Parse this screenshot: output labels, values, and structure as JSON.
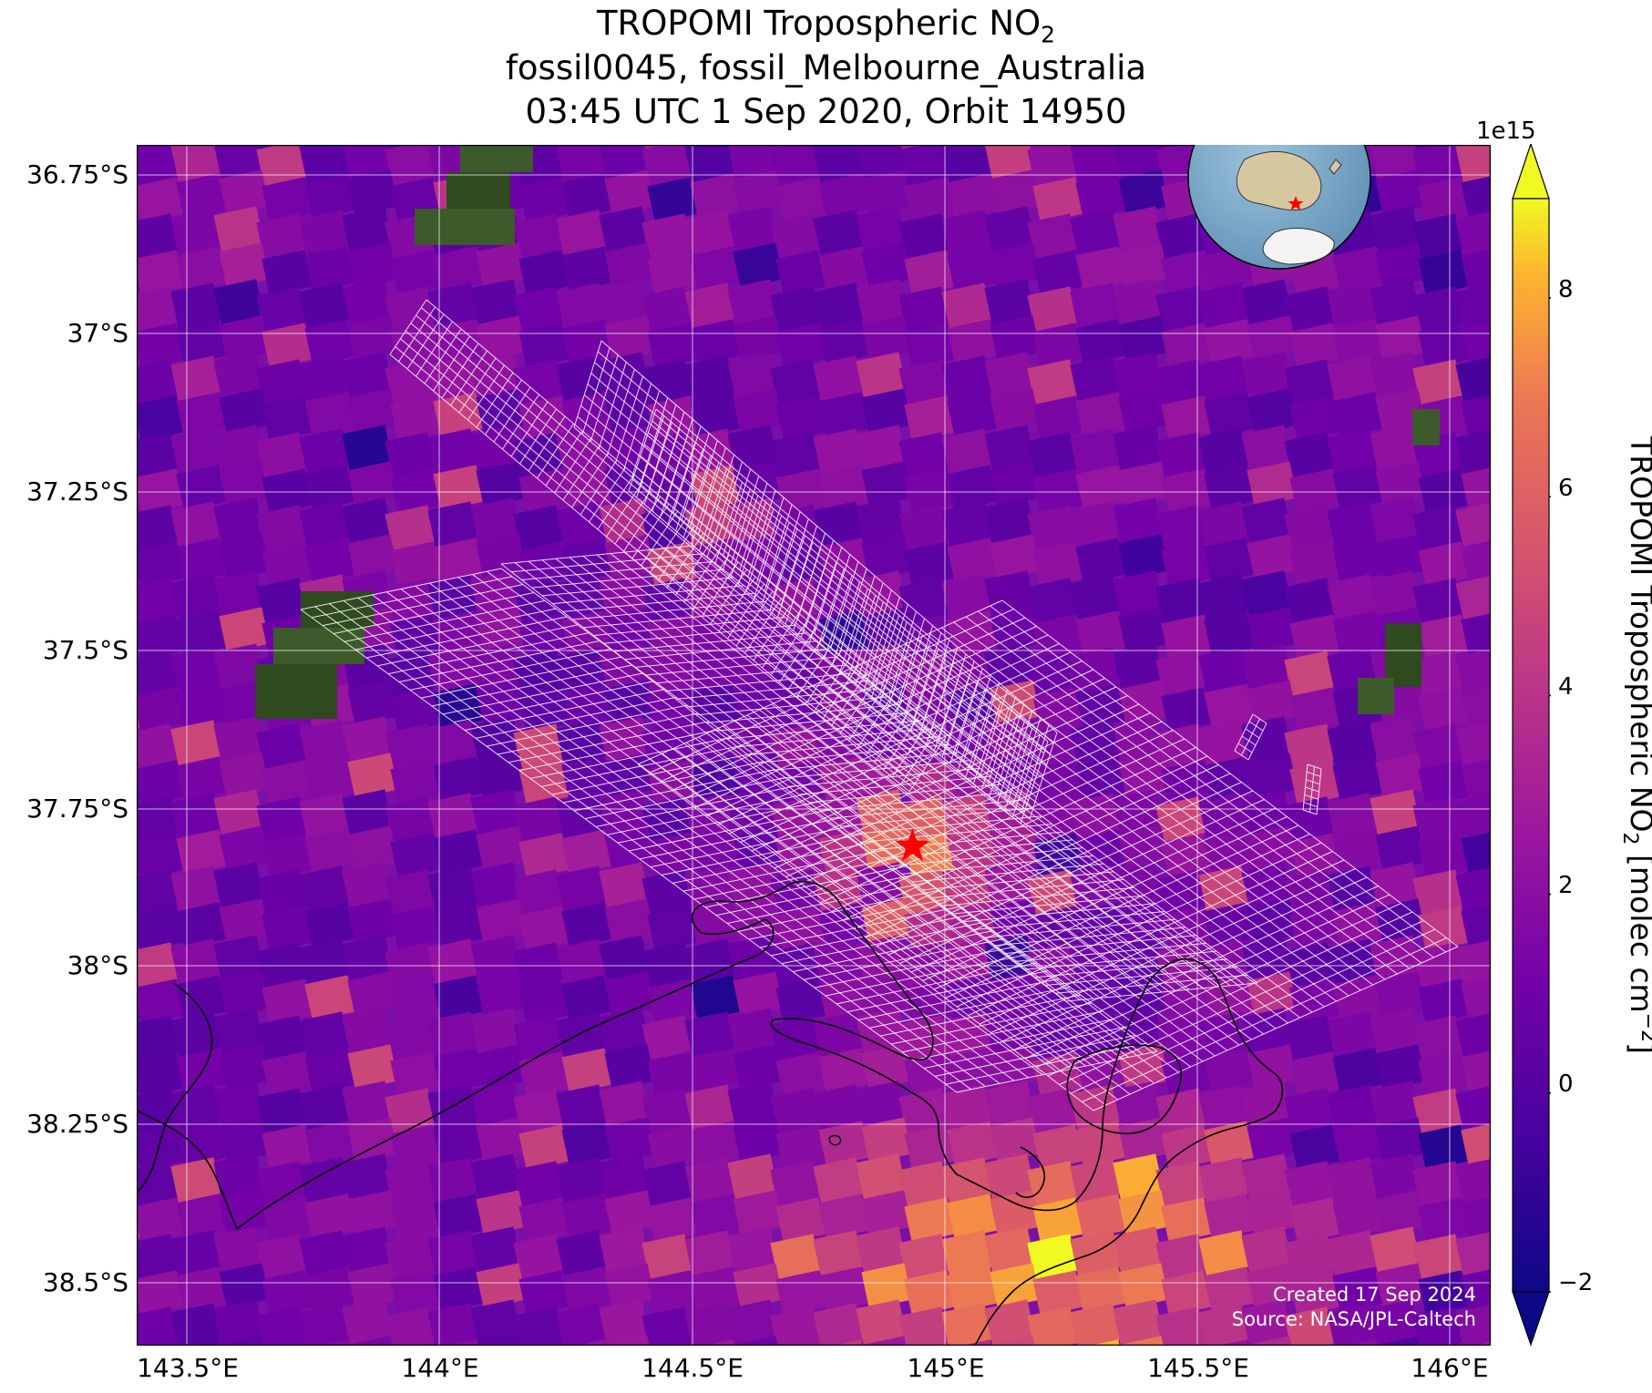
{
  "title": {
    "line1_prefix": "TROPOMI Tropospheric NO",
    "line1_sub": "2",
    "line2": "fossil0045, fossil_Melbourne_Australia",
    "line3": "03:45 UTC 1 Sep 2020, Orbit 14950"
  },
  "map": {
    "lon_range": [
      143.43,
      146.1
    ],
    "lat_range": [
      -38.6,
      -36.7
    ],
    "lon_ticks": [
      "143.5°E",
      "144°E",
      "144.5°E",
      "145°E",
      "145.5°E",
      "146°E"
    ],
    "lat_ticks": [
      "36.75°S",
      "37°S",
      "37.25°S",
      "37.5°S",
      "37.75°S",
      "38°S",
      "38.25°S",
      "38.5°S"
    ],
    "target_marker": {
      "lon": 144.96,
      "lat": -37.81,
      "symbol": "star",
      "color": "#ff0000"
    },
    "inset_globe": "australia-globe-with-target-star",
    "credits": {
      "created": "Created 17 Sep 2024",
      "source": "Source: NASA/JPL-Caltech"
    }
  },
  "colorbar": {
    "label_prefix": "TROPOMI Tropospheric NO",
    "label_sub": "2",
    "label_suffix": " [molec cm",
    "label_sup": "−2",
    "label_end": "]",
    "exponent": "1e15",
    "ticks": [
      "−2",
      "0",
      "2",
      "4",
      "6",
      "8"
    ],
    "tick_values": [
      -2,
      0,
      2,
      4,
      6,
      8
    ],
    "range": [
      -2,
      9
    ],
    "colormap": "plasma",
    "extend": "both"
  }
}
